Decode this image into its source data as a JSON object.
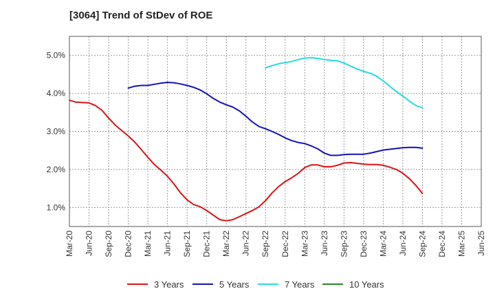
{
  "title": "[3064]  Trend of StDev of ROE",
  "chart_data": {
    "type": "line",
    "title": "[3064]  Trend of StDev of ROE",
    "xlabel": "",
    "ylabel": "",
    "x": [
      "Mar-20",
      "Jun-20",
      "Sep-20",
      "Dec-20",
      "Mar-21",
      "Jun-21",
      "Sep-21",
      "Dec-21",
      "Mar-22",
      "Jun-22",
      "Sep-22",
      "Dec-22",
      "Mar-23",
      "Jun-23",
      "Sep-23",
      "Dec-23",
      "Mar-24",
      "Jun-24",
      "Sep-24",
      "Dec-24",
      "Mar-25",
      "Jun-25"
    ],
    "y_ticks": [
      "1.0%",
      "2.0%",
      "3.0%",
      "4.0%",
      "5.0%"
    ],
    "ylim": [
      0.5,
      5.5
    ],
    "grid": true,
    "legend_position": "bottom",
    "series": [
      {
        "name": "3 Years",
        "color": "#dd1111",
        "points": [
          [
            0,
            3.82
          ],
          [
            0.33,
            3.77
          ],
          [
            0.67,
            3.76
          ],
          [
            1,
            3.75
          ],
          [
            1.33,
            3.68
          ],
          [
            1.67,
            3.55
          ],
          [
            2,
            3.35
          ],
          [
            2.33,
            3.17
          ],
          [
            2.67,
            3.02
          ],
          [
            3,
            2.88
          ],
          [
            3.33,
            2.72
          ],
          [
            3.67,
            2.52
          ],
          [
            4,
            2.32
          ],
          [
            4.33,
            2.13
          ],
          [
            4.67,
            1.98
          ],
          [
            5,
            1.82
          ],
          [
            5.33,
            1.62
          ],
          [
            5.67,
            1.38
          ],
          [
            6,
            1.2
          ],
          [
            6.33,
            1.08
          ],
          [
            6.67,
            1.02
          ],
          [
            7,
            0.92
          ],
          [
            7.33,
            0.8
          ],
          [
            7.67,
            0.68
          ],
          [
            8,
            0.65
          ],
          [
            8.33,
            0.68
          ],
          [
            8.67,
            0.76
          ],
          [
            9,
            0.84
          ],
          [
            9.33,
            0.92
          ],
          [
            9.67,
            1.02
          ],
          [
            10,
            1.18
          ],
          [
            10.33,
            1.38
          ],
          [
            10.67,
            1.55
          ],
          [
            11,
            1.68
          ],
          [
            11.33,
            1.78
          ],
          [
            11.67,
            1.9
          ],
          [
            12,
            2.05
          ],
          [
            12.33,
            2.12
          ],
          [
            12.67,
            2.12
          ],
          [
            13,
            2.07
          ],
          [
            13.33,
            2.07
          ],
          [
            13.67,
            2.11
          ],
          [
            14,
            2.17
          ],
          [
            14.33,
            2.18
          ],
          [
            14.67,
            2.16
          ],
          [
            15,
            2.14
          ],
          [
            15.33,
            2.13
          ],
          [
            15.67,
            2.13
          ],
          [
            16,
            2.11
          ],
          [
            16.33,
            2.06
          ],
          [
            16.67,
            2.0
          ],
          [
            17,
            1.9
          ],
          [
            17.33,
            1.76
          ],
          [
            17.67,
            1.58
          ],
          [
            18,
            1.37
          ]
        ]
      },
      {
        "name": "5 Years",
        "color": "#1111bb",
        "points": [
          [
            3,
            4.14
          ],
          [
            3.33,
            4.19
          ],
          [
            3.67,
            4.21
          ],
          [
            4,
            4.21
          ],
          [
            4.33,
            4.24
          ],
          [
            4.67,
            4.27
          ],
          [
            5,
            4.29
          ],
          [
            5.33,
            4.28
          ],
          [
            5.67,
            4.25
          ],
          [
            6,
            4.21
          ],
          [
            6.33,
            4.16
          ],
          [
            6.67,
            4.09
          ],
          [
            7,
            3.99
          ],
          [
            7.33,
            3.87
          ],
          [
            7.67,
            3.77
          ],
          [
            8,
            3.7
          ],
          [
            8.33,
            3.64
          ],
          [
            8.67,
            3.54
          ],
          [
            9,
            3.4
          ],
          [
            9.33,
            3.25
          ],
          [
            9.67,
            3.13
          ],
          [
            10,
            3.07
          ],
          [
            10.33,
            3.0
          ],
          [
            10.67,
            2.92
          ],
          [
            11,
            2.83
          ],
          [
            11.33,
            2.76
          ],
          [
            11.67,
            2.71
          ],
          [
            12,
            2.68
          ],
          [
            12.33,
            2.62
          ],
          [
            12.67,
            2.54
          ],
          [
            13,
            2.43
          ],
          [
            13.33,
            2.37
          ],
          [
            13.67,
            2.37
          ],
          [
            14,
            2.39
          ],
          [
            14.33,
            2.4
          ],
          [
            14.67,
            2.4
          ],
          [
            15,
            2.4
          ],
          [
            15.33,
            2.43
          ],
          [
            15.67,
            2.47
          ],
          [
            16,
            2.51
          ],
          [
            16.33,
            2.53
          ],
          [
            16.67,
            2.55
          ],
          [
            17,
            2.57
          ],
          [
            17.33,
            2.58
          ],
          [
            17.67,
            2.58
          ],
          [
            18,
            2.56
          ]
        ]
      },
      {
        "name": "7 Years",
        "color": "#22dddd",
        "points": [
          [
            10,
            4.67
          ],
          [
            10.33,
            4.73
          ],
          [
            10.67,
            4.78
          ],
          [
            11,
            4.81
          ],
          [
            11.33,
            4.84
          ],
          [
            11.67,
            4.89
          ],
          [
            12,
            4.93
          ],
          [
            12.33,
            4.94
          ],
          [
            12.67,
            4.92
          ],
          [
            13,
            4.89
          ],
          [
            13.33,
            4.87
          ],
          [
            13.67,
            4.86
          ],
          [
            14,
            4.8
          ],
          [
            14.33,
            4.72
          ],
          [
            14.67,
            4.64
          ],
          [
            15,
            4.58
          ],
          [
            15.33,
            4.53
          ],
          [
            15.67,
            4.45
          ],
          [
            16,
            4.33
          ],
          [
            16.33,
            4.19
          ],
          [
            16.67,
            4.05
          ],
          [
            17,
            3.93
          ],
          [
            17.33,
            3.8
          ],
          [
            17.67,
            3.68
          ],
          [
            18,
            3.62
          ]
        ]
      },
      {
        "name": "10 Years",
        "color": "#228822",
        "points": []
      }
    ]
  }
}
